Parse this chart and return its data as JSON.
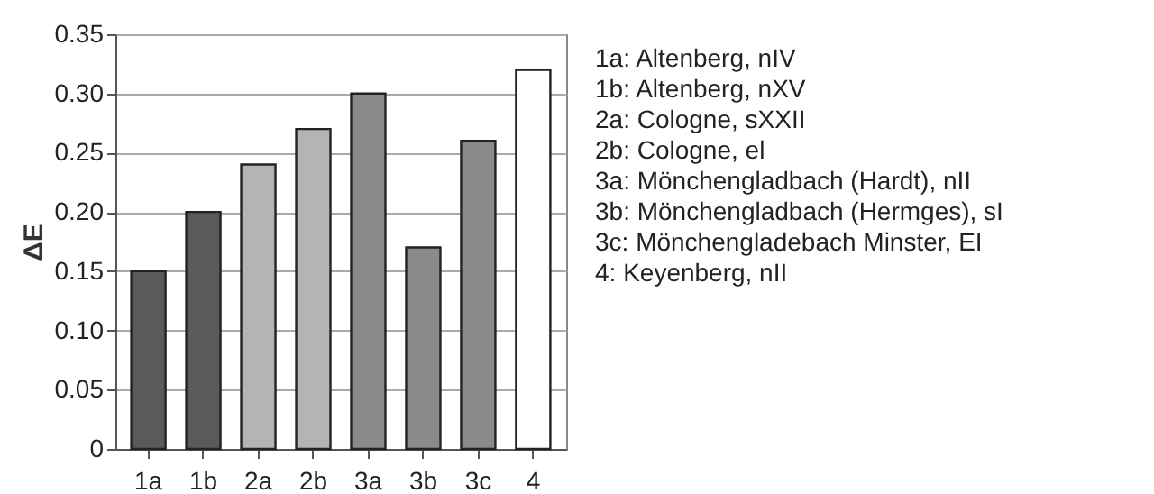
{
  "chart_data": {
    "type": "bar",
    "ylabel": "ΔE",
    "categories": [
      "1a",
      "1b",
      "2a",
      "2b",
      "3a",
      "3b",
      "3c",
      "4"
    ],
    "values": [
      0.15,
      0.2,
      0.24,
      0.27,
      0.3,
      0.17,
      0.26,
      0.32
    ],
    "colors": [
      "#5a5a5a",
      "#5a5a5a",
      "#b4b4b4",
      "#b4b4b4",
      "#8a8a8a",
      "#8a8a8a",
      "#8a8a8a",
      "#ffffff"
    ],
    "ylim": [
      0,
      0.35
    ],
    "yticks": [
      0,
      0.05,
      {
        "value": 0.1,
        "label": "0.10"
      },
      0.15,
      {
        "value": 0.2,
        "label": "0.20"
      },
      0.25,
      {
        "value": 0.3,
        "label": "0.30"
      },
      0.35
    ],
    "grid": "y",
    "annotations": [
      "1a: Altenberg, nIV",
      "1b: Altenberg, nXV",
      "2a: Cologne, sXXII",
      "2b: Cologne, el",
      "3a: Mönchengladbach (Hardt), nII",
      "3b: Mönchengladbach (Hermges), sI",
      "3c: Mönchengladebach Minster, EI",
      "4: Keyenberg, nII"
    ]
  }
}
